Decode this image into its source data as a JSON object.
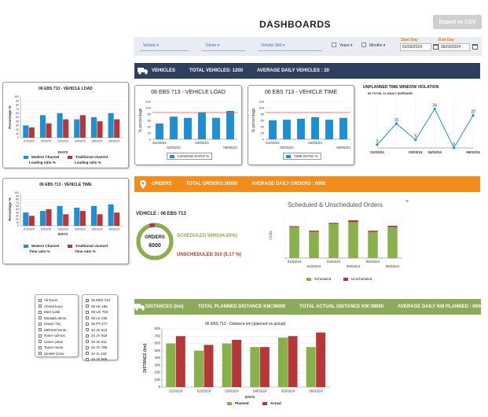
{
  "header": {
    "title": "DASHBOARDS",
    "export_label": "Export to CSV"
  },
  "filters": {
    "vehicle": "Vehicle",
    "driver": "Driver",
    "vehicle_skill": "Vehicle Skill",
    "years": "Years",
    "months": "Months",
    "start_day_label": "Start Day",
    "start_day_value": "01/03/2024",
    "end_day_label": "End Day",
    "end_day_value": "06/03/2024"
  },
  "vehicles_band": {
    "label": "VEHICLES",
    "total": "TOTAL VEHICLES: 1200",
    "average": "AVERAGE DAILY VEHICLES : 20"
  },
  "orders_band": {
    "label": "ORDERS",
    "total": "TOTAL ORDERS:36000",
    "average": "AVERAGE DAILY ORDERS : 6000"
  },
  "distances_band": {
    "label": "DISTANCES (km)",
    "total_planned": "TOTAL PLANNED DISTANCE KM:36000",
    "total_actual": "TOTAL ACTUAL DISTANCE KM:38000",
    "average_planned": "AVERAGE DAILY KM PLANNED : 6000"
  },
  "orders_summary": {
    "vehicle_label": "VEHICLE : 06 EBS 713",
    "donut_title": "ORDERS",
    "donut_value": "6000",
    "scheduled_text": "SCHEDULED 5690(94.83%)",
    "unscheduled_text": "UNSCHEDULED 310 (5.17 %)",
    "scheduled_fraction": 0.9483
  },
  "vehicle_list": {
    "left": [
      "All Toron",
      "Ahmet koyo",
      "Mert Çelik",
      "Mustafa demir",
      "Hasan Tüç",
      "Mehmet kerim",
      "Toner solmos",
      "Caner çekar",
      "Tosun musa",
      "Şevket Çene"
    ],
    "right": [
      "06 EBS 713",
      "06 AK 186",
      "06 UK 703",
      "06 LK 236",
      "06 PT 277",
      "34 JK 613",
      "34 JV 918",
      "34 JK 811",
      "34 JV 786",
      "34 JL 443",
      "34 JS 665"
    ],
    "right_checked": [
      0
    ]
  },
  "colors": {
    "blue": "#1f8fd1",
    "red": "#b5373a",
    "green": "#88b04b",
    "navy": "#2f3f5e",
    "orange": "#f28c1b"
  },
  "chart_data": [
    {
      "id": "small-load",
      "type": "bar",
      "title": "06 EBS 713 - VEHICLE LOAD",
      "xlabel": "DAYS",
      "ylabel": "Percentage %",
      "categories": [
        "01/03/24",
        "02/03/24",
        "03/03/24",
        "04/03/24",
        "05/03/24",
        "06/03/24"
      ],
      "ylim": [
        0,
        100
      ],
      "yticks": [
        0,
        10,
        20,
        30,
        40,
        50,
        60,
        70,
        80,
        90,
        100
      ],
      "series": [
        {
          "name": "Modern Channel",
          "values": [
            30,
            55,
            60,
            45,
            50,
            60
          ]
        },
        {
          "name": "Traditional channel",
          "values": [
            25,
            35,
            45,
            55,
            40,
            45
          ]
        }
      ],
      "legend_sub": [
        "Loading ratio %",
        "Loading ratio %"
      ]
    },
    {
      "id": "small-time",
      "type": "bar",
      "title": "06 EBS 713 - VEHICLE TIME",
      "xlabel": "DAYS",
      "ylabel": "Percentage %",
      "categories": [
        "01/03/24",
        "02/03/24",
        "03/03/24",
        "04/03/24",
        "05/03/24",
        "06/03/24"
      ],
      "ylim": [
        0,
        100
      ],
      "yticks": [
        0,
        10,
        20,
        30,
        40,
        50,
        60,
        70,
        80,
        90,
        100
      ],
      "series": [
        {
          "name": "Modern Channel",
          "values": [
            40,
            45,
            60,
            55,
            60,
            65
          ]
        },
        {
          "name": "Traditional channel",
          "values": [
            30,
            50,
            35,
            45,
            35,
            40
          ]
        }
      ],
      "legend_sub": [
        "Time ratio %",
        "Time ratio %"
      ]
    },
    {
      "id": "load",
      "type": "bar",
      "title": "06 EBS 713 - VEHICLE LOAD",
      "ylabel": "% percentage",
      "categories": [
        "01/03/24",
        "02/03/24",
        "03/03/24",
        "04/03/24",
        "05/03/24",
        "06/06/24"
      ],
      "tick_labels": [
        "01/03/24",
        "02/03/24",
        "04/03/24",
        "06/06/24"
      ],
      "ylim": [
        0,
        120
      ],
      "yticks": [
        0,
        20,
        40,
        60,
        80,
        100,
        120
      ],
      "target": 85,
      "series": [
        {
          "name": "LOADING RATIO %",
          "values": [
            50,
            72,
            68,
            86,
            68,
            90
          ]
        }
      ]
    },
    {
      "id": "time",
      "type": "bar",
      "title": "06 EBS 713 - VEHICLE TIME",
      "ylabel": "% percentage",
      "categories": [
        "01/03/24",
        "02/03/24",
        "03/03/24",
        "04/03/24",
        "05/03/24",
        "06/06/24"
      ],
      "tick_labels": [
        "01/03/24",
        "02/03/24",
        "04/03/24",
        "06/06/24"
      ],
      "ylim": [
        0,
        120
      ],
      "yticks": [
        0,
        20,
        40,
        60,
        80,
        100,
        120
      ],
      "target": 85,
      "series": [
        {
          "name": "TIME RATIO %",
          "values": [
            60,
            62,
            65,
            70,
            62,
            68
          ]
        }
      ]
    },
    {
      "id": "unplanned",
      "type": "line",
      "title": "UNPLANNED TIME WINDOW VIOLATION",
      "subtitle": "06 TOTAL 11 DAILY AVERAGE",
      "categories": [
        "01/03/24",
        "02/03/24",
        "03/03/24",
        "04/03/24",
        "05/03/24",
        "06/03/24"
      ],
      "tick_labels": [
        "01/03/24",
        "03/03/24",
        "04/03/24",
        "06/03/24"
      ],
      "ylim": [
        0,
        30
      ],
      "values": [
        2,
        15,
        5,
        24,
        0,
        20
      ]
    },
    {
      "id": "scheduled",
      "type": "bar",
      "title": "Scheduled & Unscheduled Orders",
      "ylabel": "Units",
      "categories": [
        "01/03/24",
        "02/03/24",
        "03/03/24",
        "04/03/24",
        "05/03/24",
        "06/03/24"
      ],
      "tick_labels": [
        "01/03/24",
        "02/03/24",
        "03/03/24",
        "04/03/24",
        "05/03/24",
        "06/03/24"
      ],
      "ylim": [
        0,
        1400
      ],
      "stacked": true,
      "series": [
        {
          "name": "Scheduled",
          "values": [
            950,
            800,
            1050,
            1100,
            800,
            950
          ]
        },
        {
          "name": "Unscheduled",
          "values": [
            30,
            40,
            30,
            60,
            40,
            40
          ]
        }
      ]
    },
    {
      "id": "distance",
      "type": "bar",
      "title": "06 EBS 713 - Distance km (planned vs actual)",
      "xlabel": "DAYS",
      "ylabel": "DISTANCE (km)",
      "categories": [
        "01/03/24",
        "02/03/24",
        "03/03/24",
        "04/03/24",
        "05/03/24",
        "06/03/24"
      ],
      "tick_labels": [
        "01/03/24",
        "02/03/24",
        "03/03/24",
        "04/03/24",
        "05/03/24",
        "06/03/24"
      ],
      "ylim": [
        0,
        800
      ],
      "yticks": [
        0,
        100,
        200,
        300,
        400,
        500,
        600,
        700,
        800
      ],
      "series": [
        {
          "name": "Planned",
          "values": [
            600,
            500,
            600,
            550,
            680,
            550
          ]
        },
        {
          "name": "Actual",
          "values": [
            700,
            580,
            650,
            550,
            700,
            750
          ]
        }
      ]
    }
  ]
}
